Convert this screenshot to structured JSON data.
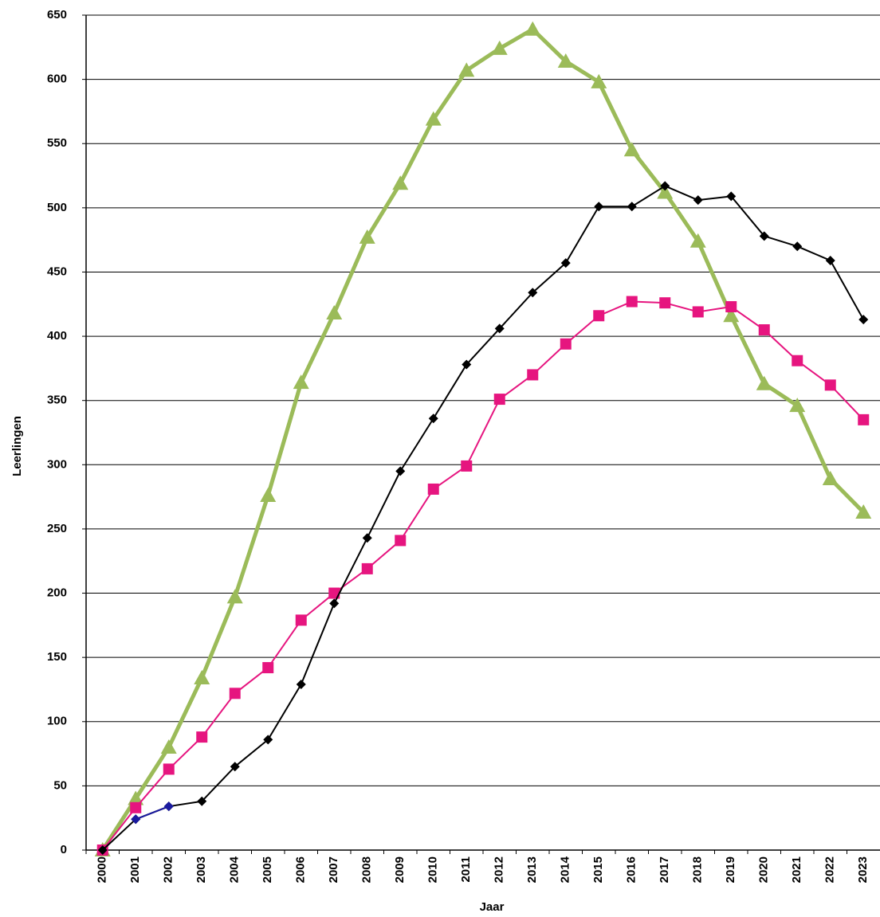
{
  "chart_data": {
    "type": "line",
    "x_label": "Jaar",
    "y_label": "Leerlingen",
    "categories": [
      "2000",
      "2001",
      "2002",
      "2003",
      "2004",
      "2005",
      "2006",
      "2007",
      "2008",
      "2009",
      "2010",
      "2011",
      "2012",
      "2013",
      "2014",
      "2015",
      "2016",
      "2017",
      "2018",
      "2019",
      "2020",
      "2021",
      "2022",
      "2023"
    ],
    "series": [
      {
        "color": "#9bbb59",
        "marker": "triangle",
        "values": [
          0,
          40,
          80,
          134,
          197,
          276,
          364,
          418,
          477,
          519,
          569,
          607,
          624,
          639,
          614,
          598,
          545,
          512,
          474,
          416,
          363,
          346,
          289,
          263
        ]
      },
      {
        "color": "#e6157f",
        "marker": "square",
        "values": [
          0,
          33,
          63,
          88,
          122,
          142,
          179,
          200,
          219,
          241,
          281,
          299,
          351,
          370,
          394,
          416,
          427,
          426,
          419,
          423,
          405,
          381,
          362,
          335
        ]
      },
      {
        "color": "#000000",
        "marker": "diamond",
        "values": [
          0,
          24,
          34,
          38,
          65,
          86,
          129,
          192,
          243,
          295,
          336,
          378,
          406,
          434,
          457,
          501,
          501,
          517,
          506,
          509,
          478,
          470,
          459,
          413
        ]
      },
      {
        "color": "#1a1aa0",
        "marker": "diamond",
        "values": [
          null,
          24,
          34,
          null,
          null,
          null,
          null,
          null,
          null,
          null,
          null,
          null,
          null,
          null,
          null,
          null,
          null,
          null,
          null,
          null,
          null,
          null,
          null,
          null
        ]
      }
    ],
    "ylim": [
      0,
      650
    ],
    "yticks": [
      0,
      50,
      100,
      150,
      200,
      250,
      300,
      350,
      400,
      450,
      500,
      550,
      600,
      650
    ],
    "grid": true
  }
}
